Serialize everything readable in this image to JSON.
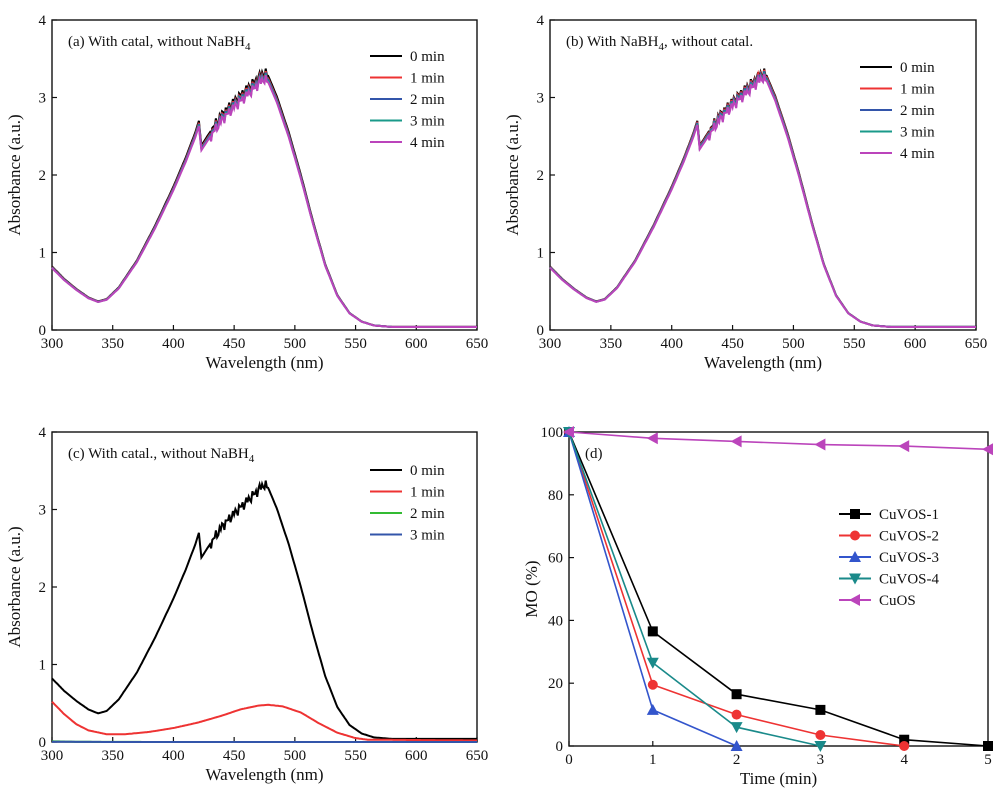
{
  "chart_data": [
    {
      "id": "a",
      "type": "line",
      "panel_label": "(a) With catal, without NaBH",
      "panel_label_sub": "4",
      "xlabel": "Wavelength (nm)",
      "ylabel": "Absorbance (a.u.)",
      "xlim": [
        300,
        650
      ],
      "ylim": [
        0,
        4
      ],
      "xticks": [
        300,
        350,
        400,
        450,
        500,
        550,
        600,
        650
      ],
      "yticks": [
        0,
        1,
        2,
        3,
        4
      ],
      "legend_position": "top-right",
      "series": [
        {
          "name": "0 min",
          "color": "#000000",
          "profile": "full",
          "scale": 1.0,
          "offset": 0.0
        },
        {
          "name": "1 min",
          "color": "#ee3333",
          "profile": "full",
          "scale": 0.99,
          "offset": 0.0
        },
        {
          "name": "2 min",
          "color": "#3355aa",
          "profile": "full",
          "scale": 0.985,
          "offset": 0.0
        },
        {
          "name": "3 min",
          "color": "#1a9a8a",
          "profile": "full",
          "scale": 0.98,
          "offset": 0.0
        },
        {
          "name": "4 min",
          "color": "#bb44bb",
          "profile": "full",
          "scale": 0.975,
          "offset": 0.0
        }
      ]
    },
    {
      "id": "b",
      "type": "line",
      "panel_label": "(b) With NaBH",
      "panel_label_sub": "4",
      "panel_label_tail": ", without catal.",
      "xlabel": "Wavelength (nm)",
      "ylabel": "Absorbance (a.u.)",
      "xlim": [
        300,
        650
      ],
      "ylim": [
        0,
        4
      ],
      "xticks": [
        300,
        350,
        400,
        450,
        500,
        550,
        600,
        650
      ],
      "yticks": [
        0,
        1,
        2,
        3,
        4
      ],
      "legend_position": "top-right",
      "series": [
        {
          "name": "0 min",
          "color": "#000000",
          "profile": "full",
          "scale": 1.0,
          "offset": 0.0
        },
        {
          "name": "1 min",
          "color": "#ee3333",
          "profile": "full",
          "scale": 0.995,
          "offset": 0.0
        },
        {
          "name": "2 min",
          "color": "#3355aa",
          "profile": "full",
          "scale": 0.99,
          "offset": 0.0
        },
        {
          "name": "3 min",
          "color": "#1a9a8a",
          "profile": "full",
          "scale": 0.985,
          "offset": 0.0
        },
        {
          "name": "4 min",
          "color": "#bb44bb",
          "profile": "full",
          "scale": 0.98,
          "offset": 0.0
        }
      ]
    },
    {
      "id": "c",
      "type": "line",
      "panel_label": "(c) With catal., without NaBH",
      "panel_label_sub": "4",
      "xlabel": "Wavelength (nm)",
      "ylabel": "Absorbance (a.u.)",
      "xlim": [
        300,
        650
      ],
      "ylim": [
        0,
        4
      ],
      "xticks": [
        300,
        350,
        400,
        450,
        500,
        550,
        600,
        650
      ],
      "yticks": [
        0,
        1,
        2,
        3,
        4
      ],
      "legend_position": "top-right",
      "series": [
        {
          "name": "0 min",
          "color": "#000000",
          "profile": "full",
          "scale": 1.0,
          "offset": 0.0
        },
        {
          "name": "1 min",
          "color": "#ee3333",
          "profile": "reduced",
          "scale": 1.0,
          "offset": 0.0
        },
        {
          "name": "2 min",
          "color": "#33bb33",
          "profile": "flat",
          "scale": 0.02,
          "offset": 0.0
        },
        {
          "name": "3 min",
          "color": "#3355aa",
          "profile": "flat",
          "scale": 0.01,
          "offset": 0.0
        }
      ]
    },
    {
      "id": "d",
      "type": "line",
      "panel_label": "(d)",
      "xlabel": "Time (min)",
      "ylabel": "MO (%)",
      "xlim": [
        0,
        5
      ],
      "ylim": [
        0,
        100
      ],
      "xticks": [
        0,
        1,
        2,
        3,
        4,
        5
      ],
      "yticks": [
        0,
        20,
        40,
        60,
        80,
        100
      ],
      "legend_position": "right",
      "series": [
        {
          "name": "CuVOS-1",
          "color": "#000000",
          "marker": "square",
          "x": [
            0,
            1,
            2,
            3,
            4,
            5
          ],
          "y": [
            100,
            36.5,
            16.5,
            11.5,
            2,
            0
          ]
        },
        {
          "name": "CuVOS-2",
          "color": "#ee3333",
          "marker": "circle",
          "x": [
            0,
            1,
            2,
            3,
            4
          ],
          "y": [
            100,
            19.5,
            10,
            3.5,
            0
          ]
        },
        {
          "name": "CuVOS-3",
          "color": "#3355cc",
          "marker": "triangle-up",
          "x": [
            0,
            1,
            2
          ],
          "y": [
            100,
            11.5,
            0
          ]
        },
        {
          "name": "CuVOS-4",
          "color": "#1a8a8a",
          "marker": "triangle-down",
          "x": [
            0,
            1,
            2,
            3
          ],
          "y": [
            100,
            26.5,
            6,
            0
          ]
        },
        {
          "name": "CuOS",
          "color": "#bb44bb",
          "marker": "triangle-left",
          "x": [
            0,
            1,
            2,
            3,
            4,
            5
          ],
          "y": [
            100,
            98,
            97,
            96,
            95.5,
            94.5
          ]
        }
      ]
    }
  ]
}
